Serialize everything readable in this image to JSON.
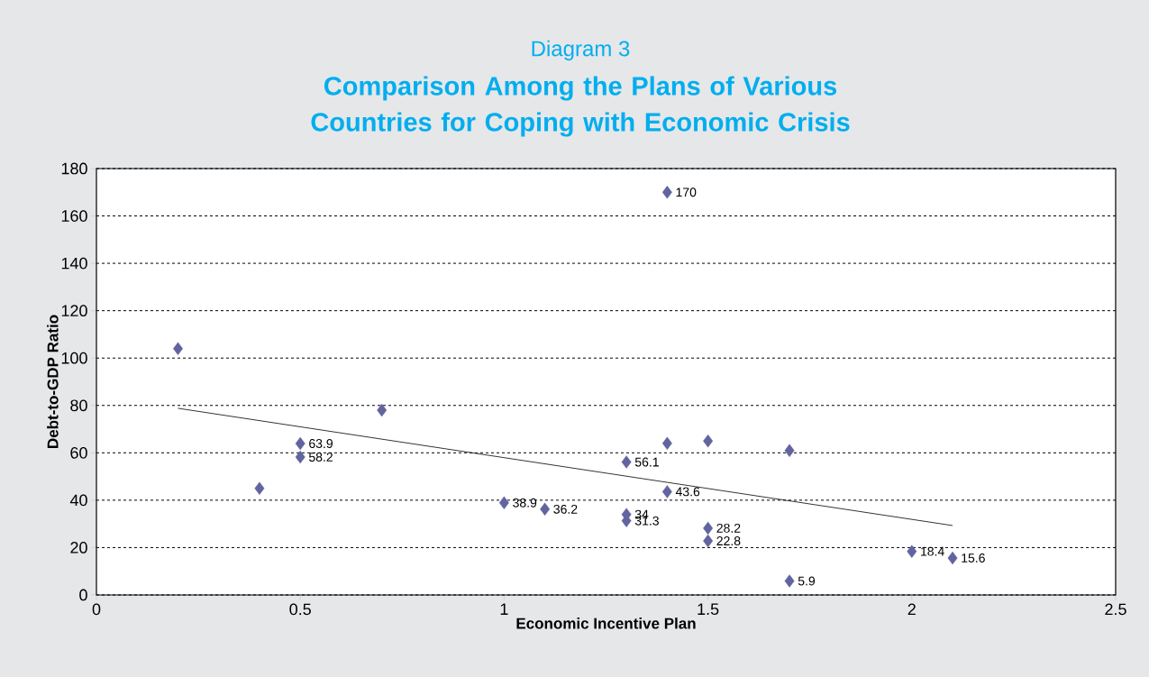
{
  "chart_data": {
    "type": "scatter",
    "subtitle": "Diagram 3",
    "title": "Comparison Among the Plans of Various Countries for Coping with Economic Crisis",
    "xlabel": "Economic Incentive Plan",
    "ylabel": "Debt-to-GDP Ratio",
    "xlim": [
      0,
      2.5
    ],
    "xticks": [
      0,
      0.5,
      1,
      1.5,
      2,
      2.5
    ],
    "ylim": [
      0,
      180
    ],
    "yticks": [
      0,
      20,
      40,
      60,
      80,
      100,
      120,
      140,
      160,
      180
    ],
    "grid": "y",
    "series": [
      {
        "color": "#6264a0",
        "marker": "diamond",
        "x": [
          0.2,
          0.4,
          0.5,
          0.5,
          0.7,
          1.0,
          1.1,
          1.3,
          1.3,
          1.3,
          1.4,
          1.4,
          1.4,
          1.5,
          1.5,
          1.5,
          1.7,
          1.7,
          2.0,
          2.1
        ],
        "values": [
          104,
          45,
          63.9,
          58.2,
          78,
          38.9,
          36.2,
          56.1,
          34,
          31.3,
          170,
          64,
          43.6,
          65,
          28.2,
          22.8,
          61,
          5.9,
          18.4,
          15.6
        ],
        "value_labels": [
          null,
          null,
          "63.9",
          "58.2",
          null,
          "38.9",
          "36.2",
          "56.1",
          "34",
          "31.3",
          "170",
          null,
          "43.6",
          null,
          "28.2",
          "22.8",
          null,
          "5.9",
          "18.4",
          "15.6"
        ]
      },
      {
        "type": "line",
        "color": "#000000",
        "marker": "none",
        "line_style": "solid",
        "x": [
          0.2,
          2.1
        ],
        "values": [
          78.8,
          29.3
        ]
      }
    ]
  }
}
